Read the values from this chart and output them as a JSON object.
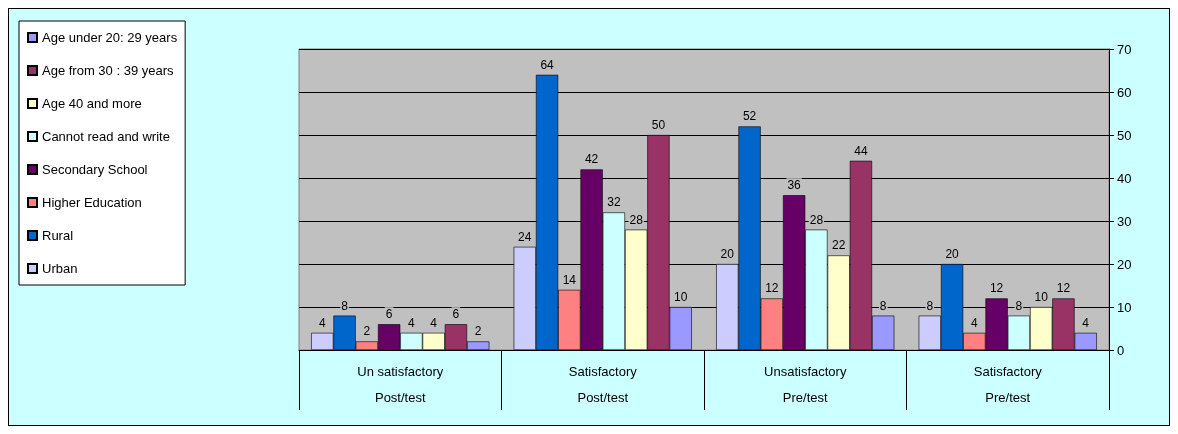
{
  "chart_data": {
    "type": "bar",
    "categories": [
      "Un satisfactory\nPost/test",
      "Satisfactory\nPost/test",
      "Unsatisfactory\nPre/test",
      "Satisfactory\nPre/test"
    ],
    "series": [
      {
        "name": "Urban",
        "color": "#ccccff",
        "values": [
          4,
          24,
          20,
          8
        ]
      },
      {
        "name": "Rural",
        "color": "#0066cc",
        "values": [
          8,
          64,
          52,
          20
        ]
      },
      {
        "name": "Higher Education",
        "color": "#ff8080",
        "values": [
          2,
          14,
          12,
          4
        ]
      },
      {
        "name": "Secondary School",
        "color": "#660066",
        "values": [
          6,
          42,
          36,
          12
        ]
      },
      {
        "name": "Cannot read and write",
        "color": "#ccffff",
        "values": [
          4,
          32,
          28,
          8
        ]
      },
      {
        "name": "Age 40 and more",
        "color": "#ffffcc",
        "values": [
          4,
          28,
          22,
          10
        ]
      },
      {
        "name": "Age from 30 : 39 years",
        "color": "#993366",
        "values": [
          6,
          50,
          44,
          12
        ]
      },
      {
        "name": "Age under 20: 29 years",
        "color": "#9999ff",
        "values": [
          2,
          10,
          8,
          4
        ]
      }
    ],
    "ylim": [
      0,
      70
    ],
    "yticks": [
      0,
      10,
      20,
      30,
      40,
      50,
      60,
      70
    ],
    "grid": "y",
    "legend": "left",
    "data_labels": true
  }
}
